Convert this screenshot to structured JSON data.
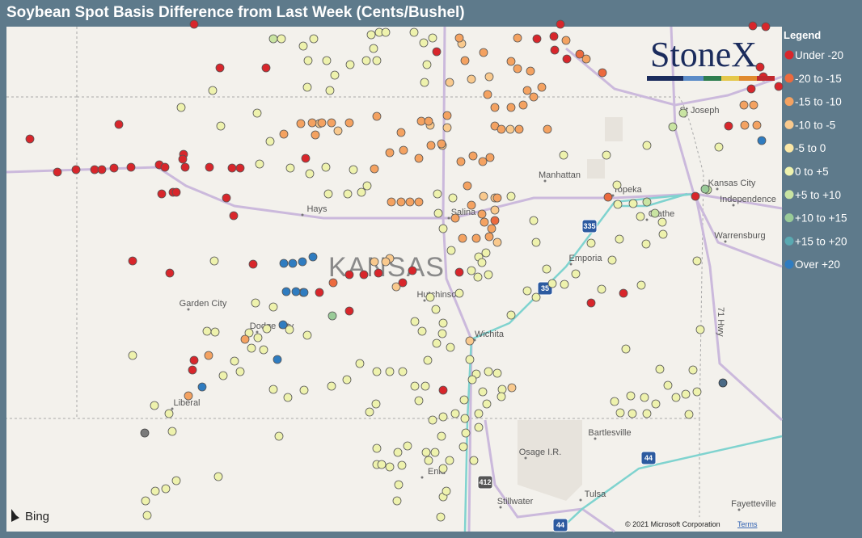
{
  "title": "Soybean Spot Basis Difference from Last Week (Cents/Bushel)",
  "legend": {
    "title": "Legend",
    "items": [
      {
        "label": "Under -20",
        "color": "#d8262b"
      },
      {
        "label": "-20 to -15",
        "color": "#ec6a3e"
      },
      {
        "label": "-15 to -10",
        "color": "#f4a261"
      },
      {
        "label": "-10 to -5",
        "color": "#f9c98d"
      },
      {
        "label": "-5 to 0",
        "color": "#fbe7a6"
      },
      {
        "label": "0 to +5",
        "color": "#eef2ad"
      },
      {
        "label": "+5 to +10",
        "color": "#c9e4a2"
      },
      {
        "label": "+10 to +15",
        "color": "#99cb98"
      },
      {
        "label": "+15 to +20",
        "color": "#5aa9b1"
      },
      {
        "label": "Over +20",
        "color": "#2f7cc0"
      }
    ]
  },
  "map": {
    "state_label": "KANSAS",
    "labels": [
      "Hays",
      "Salina",
      "Manhattan",
      "Topeka",
      "Kansas City",
      "Independence",
      "Olathe",
      "Warrensburg",
      "St Joseph",
      "Emporia",
      "Hutchinson",
      "Wichita",
      "Garden City",
      "Dodge City",
      "Liberal",
      "Bartlesville",
      "Osage I.R.",
      "Enid",
      "Stillwater",
      "Tulsa",
      "Fayetteville"
    ],
    "shields": [
      "335",
      "35",
      "412",
      "44",
      "44"
    ],
    "highway": "71 Hwy",
    "brand": "StoneX",
    "provider": "Bing",
    "attribution": "© 2021 Microsoft Corporation",
    "terms": "Terms"
  }
}
